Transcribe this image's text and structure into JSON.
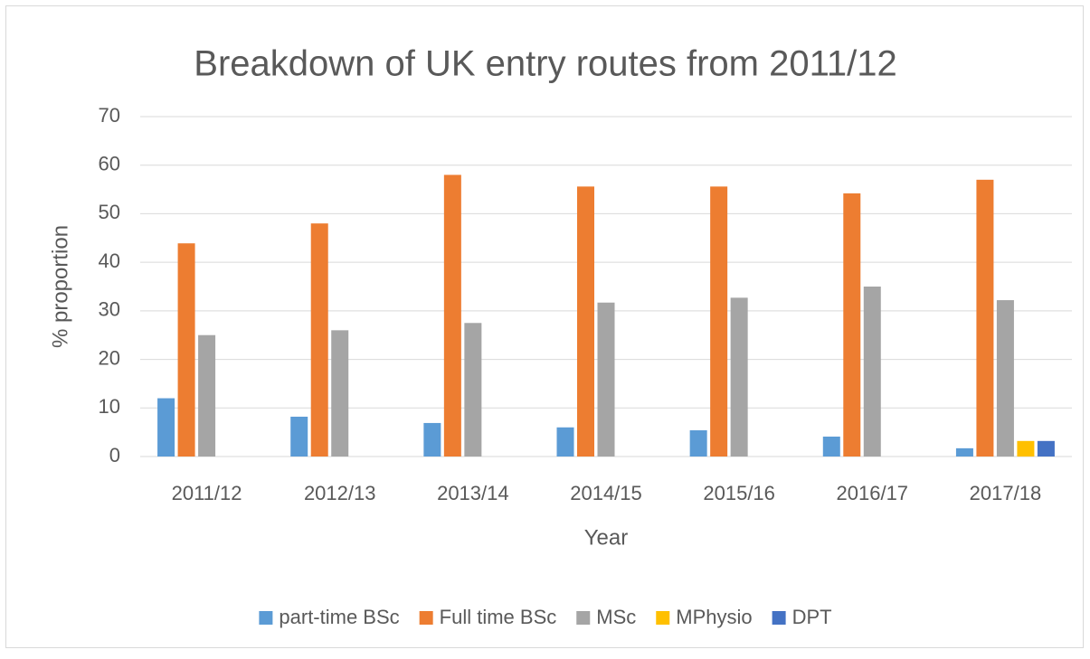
{
  "chart_data": {
    "type": "bar",
    "title": "Breakdown of UK entry routes from 2011/12",
    "x_label": "Year",
    "y_label": "% proportion",
    "categories": [
      "2011/12",
      "2012/13",
      "2013/14",
      "2014/15",
      "2015/16",
      "2016/17",
      "2017/18"
    ],
    "series": [
      {
        "name": "part-time BSc",
        "color": "#5b9bd5",
        "values": [
          12,
          8.2,
          6.9,
          6,
          5.4,
          4.1,
          1.7
        ]
      },
      {
        "name": "Full time BSc",
        "color": "#ed7d31",
        "values": [
          43.9,
          48,
          58,
          55.6,
          55.6,
          54.2,
          57
        ]
      },
      {
        "name": "MSc",
        "color": "#a5a5a5",
        "values": [
          25,
          26,
          27.5,
          31.7,
          32.7,
          35,
          32.2
        ]
      },
      {
        "name": "MPhysio",
        "color": "#ffc000",
        "values": [
          null,
          null,
          null,
          null,
          null,
          null,
          3.2
        ]
      },
      {
        "name": "DPT",
        "color": "#4472c4",
        "values": [
          null,
          null,
          null,
          null,
          null,
          null,
          3.2
        ]
      }
    ],
    "ylim": [
      0,
      70
    ],
    "yticks": [
      0,
      10,
      20,
      30,
      40,
      50,
      60,
      70
    ],
    "grid": true,
    "legend": "bottom"
  }
}
